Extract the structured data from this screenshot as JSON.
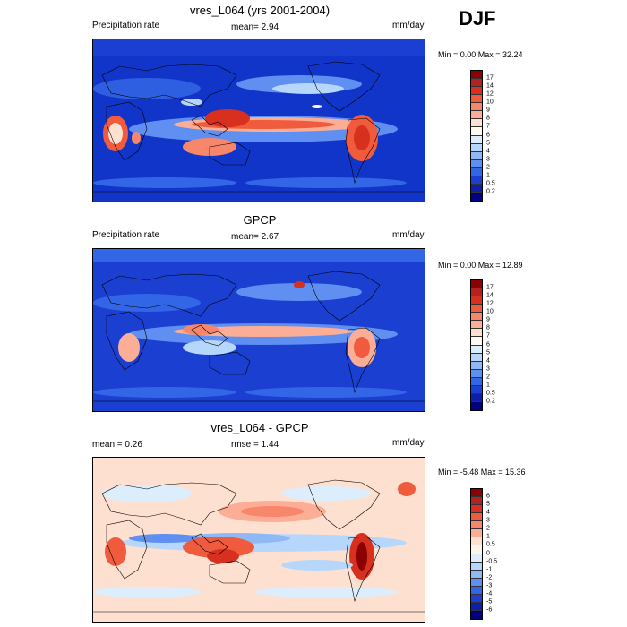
{
  "season": "DJF",
  "panels": [
    {
      "title": "vres_L064 (yrs 2001-2004)",
      "left_label": "Precipitation rate",
      "center_label": "mean=   2.94",
      "right_label": "mm/day",
      "minmax": "Min =   0.00 Max =  32.24",
      "colorbar": {
        "labels": [
          "17",
          "14",
          "12",
          "10",
          "9",
          "8",
          "7",
          "6",
          "5",
          "4",
          "3",
          "2",
          "1",
          "0.5",
          "0.2"
        ],
        "colors": [
          "#8b0000",
          "#b22222",
          "#d7301f",
          "#ef5b3c",
          "#f7866a",
          "#fbae95",
          "#fde0d0",
          "#fff8f0",
          "#dceefe",
          "#b7d6fb",
          "#8fb8f5",
          "#5f8ff0",
          "#3366e6",
          "#1a3fd1",
          "#0d1fa8",
          "#000080"
        ]
      }
    },
    {
      "title": "GPCP",
      "left_label": "Precipitation rate",
      "center_label": "mean=   2.67",
      "right_label": "mm/day",
      "minmax": "Min =   0.00 Max =  12.89",
      "colorbar": {
        "labels": [
          "17",
          "14",
          "12",
          "10",
          "9",
          "8",
          "7",
          "6",
          "5",
          "4",
          "3",
          "2",
          "1",
          "0.5",
          "0.2"
        ],
        "colors": [
          "#8b0000",
          "#b22222",
          "#d7301f",
          "#ef5b3c",
          "#f7866a",
          "#fbae95",
          "#fde0d0",
          "#fff8f0",
          "#dceefe",
          "#b7d6fb",
          "#8fb8f5",
          "#5f8ff0",
          "#3366e6",
          "#1a3fd1",
          "#0d1fa8",
          "#000080"
        ]
      }
    },
    {
      "title": "vres_L064 - GPCP",
      "left_label": "mean =   0.26",
      "center_label": "rmse =   1.44",
      "right_label": "mm/day",
      "minmax": "Min =  -5.48 Max =  15.36",
      "colorbar": {
        "labels": [
          "6",
          "5",
          "4",
          "3",
          "2",
          "1",
          "0.5",
          "0",
          "-0.5",
          "-1",
          "-2",
          "-3",
          "-4",
          "-5",
          "-6"
        ],
        "colors": [
          "#8b0000",
          "#b22222",
          "#d7301f",
          "#ef5b3c",
          "#f7866a",
          "#fbae95",
          "#fde0d0",
          "#fff3ea",
          "#dceefe",
          "#b7d6fb",
          "#8fb8f5",
          "#5f8ff0",
          "#3366e6",
          "#1a3fd1",
          "#0d1fa8",
          "#000080"
        ]
      }
    }
  ]
}
